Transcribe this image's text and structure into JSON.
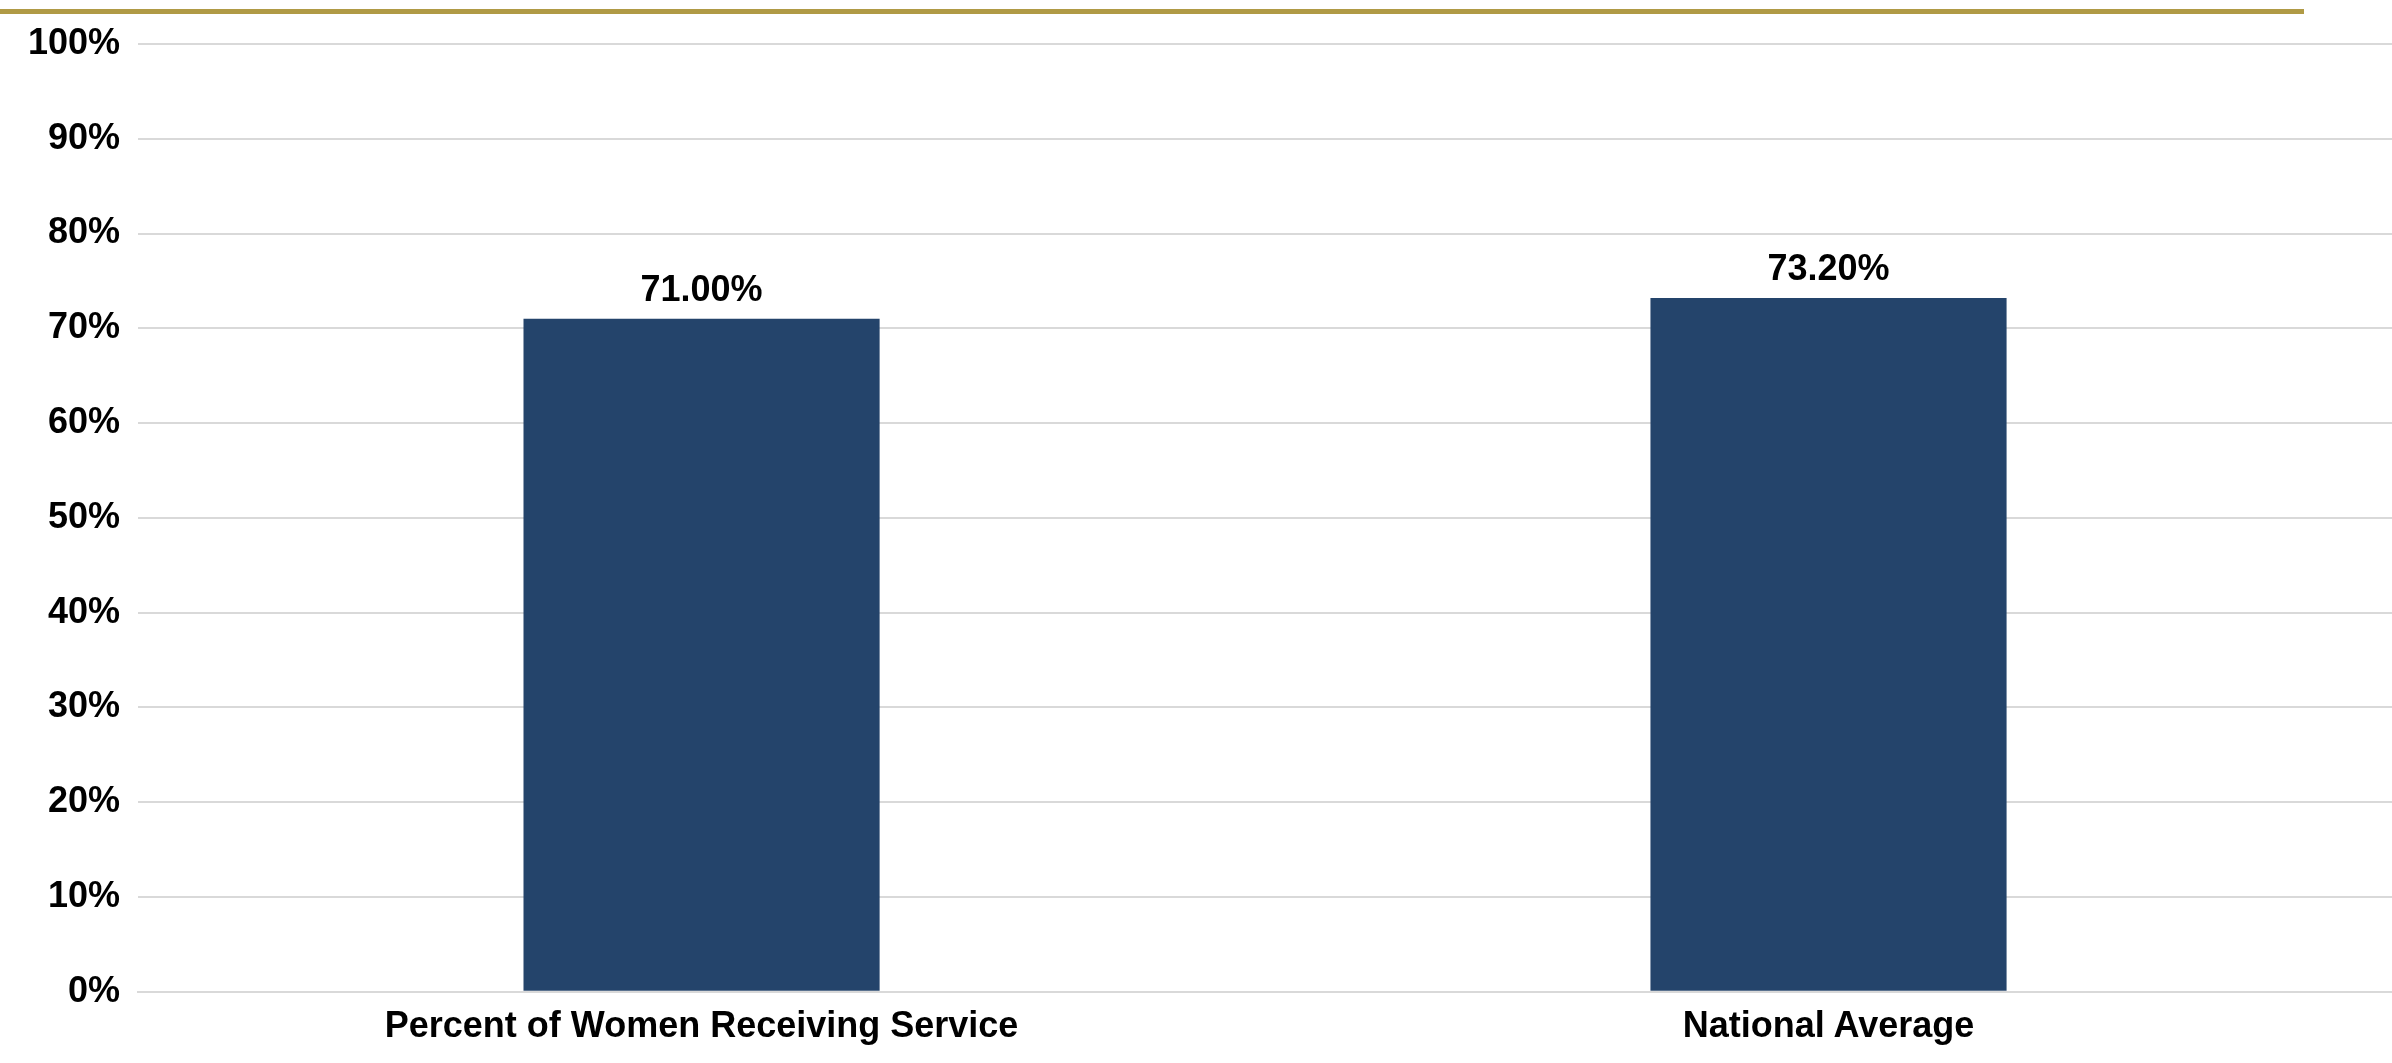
{
  "chart_data": {
    "type": "bar",
    "categories": [
      "Percent of Women Receiving Service",
      "National Average"
    ],
    "values": [
      71.0,
      73.2
    ],
    "color": "#24446b",
    "value_labels": [
      "71.00%",
      "73.20%"
    ],
    "ylim": [
      0,
      100
    ],
    "yticks": [
      {
        "value": 0,
        "label": "0%"
      },
      {
        "value": 10,
        "label": "10%"
      },
      {
        "value": 20,
        "label": "20%"
      },
      {
        "value": 30,
        "label": "30%"
      },
      {
        "value": 40,
        "label": "40%"
      },
      {
        "value": 50,
        "label": "50%"
      },
      {
        "value": 60,
        "label": "60%"
      },
      {
        "value": 70,
        "label": "70%"
      },
      {
        "value": 80,
        "label": "80%"
      },
      {
        "value": 90,
        "label": "90%"
      },
      {
        "value": 100,
        "label": "100%"
      }
    ],
    "grid": "y",
    "legend": false
  }
}
